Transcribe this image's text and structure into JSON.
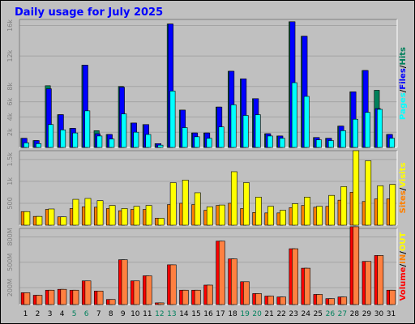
{
  "chart_data": [
    {
      "type": "bar",
      "title": "Daily usage for July 2025",
      "panel": "top",
      "categories": [
        "1",
        "2",
        "3",
        "4",
        "5",
        "6",
        "7",
        "8",
        "9",
        "10",
        "11",
        "12",
        "13",
        "14",
        "15",
        "16",
        "17",
        "18",
        "19",
        "20",
        "21",
        "22",
        "23",
        "24",
        "25",
        "26",
        "27",
        "28",
        "29",
        "30",
        "31"
      ],
      "weekend_days": [
        "5",
        "6",
        "12",
        "13",
        "19",
        "20",
        "26",
        "27"
      ],
      "yticks": [
        2000,
        4000,
        6000,
        8000,
        12000,
        16000
      ],
      "ytick_labels": [
        "2k",
        "4k",
        "6k",
        "8k",
        "12k",
        "16k"
      ],
      "ylim": [
        0,
        16800
      ],
      "series": [
        {
          "name": "Hits",
          "color": "#00805c",
          "values": [
            1200,
            900,
            8100,
            4300,
            2500,
            10800,
            2200,
            1700,
            8000,
            3200,
            3000,
            500,
            16200,
            4900,
            1900,
            1900,
            5300,
            10000,
            9000,
            6400,
            1800,
            1500,
            16500,
            14600,
            1300,
            1200,
            2800,
            7300,
            10100,
            7500,
            1700
          ]
        },
        {
          "name": "Files",
          "color": "#0000ff",
          "values": [
            1200,
            900,
            7700,
            4300,
            2500,
            10800,
            1800,
            1700,
            7900,
            3200,
            3000,
            500,
            16200,
            4900,
            1900,
            1900,
            5300,
            10000,
            9000,
            6400,
            1800,
            1500,
            16500,
            14600,
            1300,
            1200,
            2800,
            7300,
            10100,
            5100,
            1700
          ]
        },
        {
          "name": "Pages",
          "color": "#00ffff",
          "values": [
            600,
            500,
            3000,
            2300,
            1900,
            4800,
            1500,
            1100,
            4400,
            2000,
            1700,
            300,
            7400,
            2600,
            1400,
            1200,
            2700,
            5600,
            4200,
            4300,
            1500,
            1200,
            8500,
            6700,
            1000,
            900,
            2200,
            3700,
            4600,
            5000,
            1200
          ]
        }
      ],
      "legend_vertical": [
        "Pages",
        "Files",
        "Hits"
      ],
      "legend_separators": [
        "/",
        "/",
        ""
      ]
    },
    {
      "type": "bar",
      "panel": "middle",
      "yticks": [
        500,
        1000,
        1500
      ],
      "ytick_labels": [
        "500",
        "1k",
        "1.5k"
      ],
      "ylim": [
        0,
        1700
      ],
      "series": [
        {
          "name": "Sites",
          "color": "#ff8000",
          "values": [
            310,
            200,
            360,
            190,
            380,
            420,
            410,
            380,
            330,
            360,
            360,
            160,
            470,
            500,
            470,
            340,
            450,
            500,
            380,
            290,
            280,
            280,
            400,
            450,
            410,
            430,
            570,
            750,
            540,
            600,
            600
          ]
        },
        {
          "name": "Visits",
          "color": "#ffff00",
          "values": [
            310,
            200,
            370,
            190,
            590,
            610,
            560,
            450,
            380,
            430,
            450,
            160,
            970,
            1030,
            740,
            420,
            460,
            1220,
            970,
            640,
            430,
            340,
            490,
            640,
            430,
            680,
            880,
            1700,
            1470,
            900,
            930
          ]
        }
      ],
      "legend_vertical": [
        "Sites",
        "Visits"
      ],
      "legend_separators": [
        "/",
        ""
      ]
    },
    {
      "type": "bar",
      "panel": "bottom",
      "yticks": [
        200,
        500,
        800
      ],
      "ytick_labels": [
        "200M",
        "500M",
        "800M"
      ],
      "ylim": [
        0,
        900
      ],
      "series": [
        {
          "name": "Volume",
          "color": "#ff0000",
          "values": [
            140,
            110,
            170,
            180,
            170,
            280,
            160,
            60,
            530,
            280,
            340,
            20,
            470,
            170,
            170,
            230,
            750,
            540,
            270,
            130,
            100,
            90,
            660,
            430,
            120,
            70,
            90,
            920,
            510,
            580,
            170
          ]
        },
        {
          "name": "IN",
          "color": "#ff8040",
          "values": [
            140,
            110,
            170,
            180,
            170,
            280,
            160,
            60,
            530,
            280,
            340,
            20,
            470,
            170,
            170,
            230,
            750,
            540,
            270,
            130,
            100,
            90,
            660,
            430,
            120,
            70,
            90,
            920,
            510,
            580,
            170
          ]
        }
      ],
      "legend_vertical": [
        "Volume",
        "IN",
        "OUT"
      ],
      "legend_separators": [
        "/",
        "/",
        ""
      ],
      "legend_colors": [
        "#ff0000",
        "#ff8000",
        "#ffff00"
      ]
    }
  ]
}
